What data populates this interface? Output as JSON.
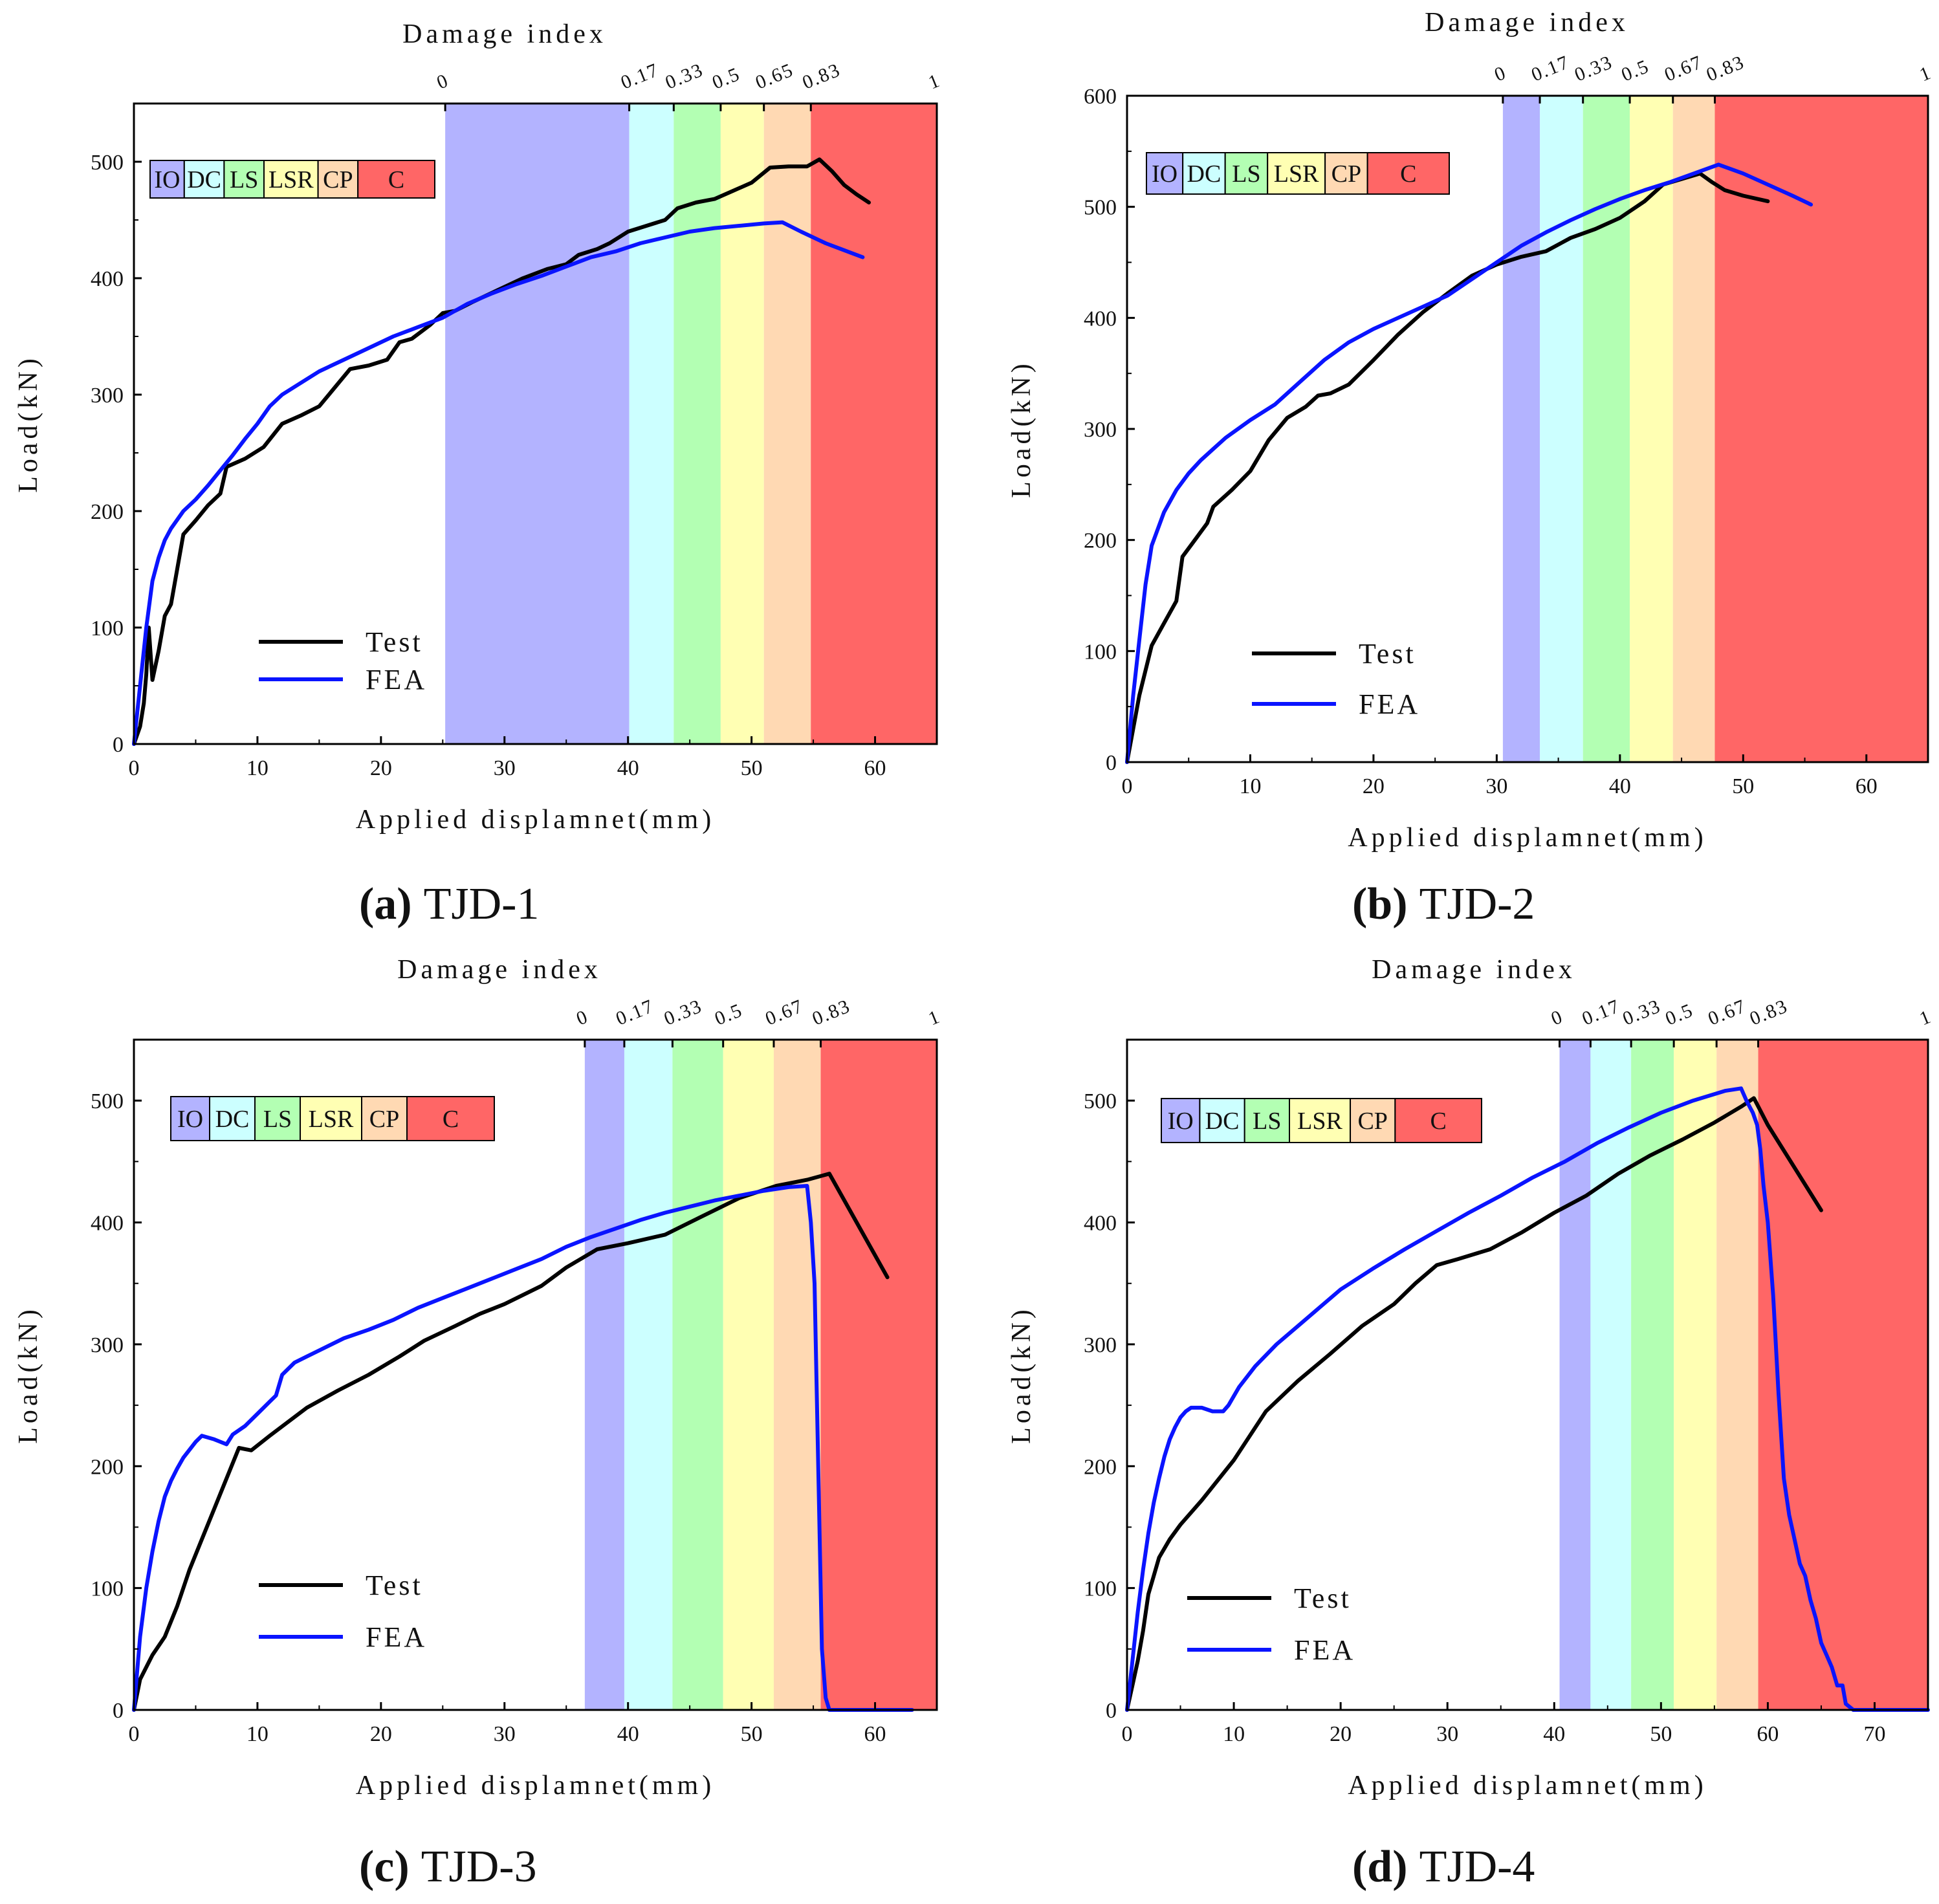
{
  "figure": {
    "colors": {
      "test": "#000000",
      "fea": "#0a14ff",
      "IO": "#b3b3ff",
      "DC": "#ccffff",
      "LS": "#b3ffb3",
      "LSR": "#ffffb3",
      "CP": "#ffd9b3",
      "C": "#ff6666"
    }
  },
  "chart_data": [
    {
      "type": "line",
      "panel": "a",
      "caption_letter": "(a)",
      "caption_name": "TJD-1",
      "title": "Damage index",
      "xlabel": "Applied displamnet(mm)",
      "ylabel": "Load(kN)",
      "xlim": [
        0,
        65
      ],
      "ylim": [
        0,
        550
      ],
      "xticks": [
        0,
        10,
        20,
        30,
        40,
        50,
        60
      ],
      "yticks": [
        0,
        100,
        200,
        300,
        400,
        500
      ],
      "damage_index": {
        "ticks": [
          "0",
          "0.17",
          "0.33",
          "0.5",
          "0.65",
          "0.83",
          "1"
        ],
        "boundaries": [
          25.2,
          40.1,
          43.7,
          47.5,
          51.0,
          54.8,
          65
        ]
      },
      "zone_labels": [
        "IO",
        "DC",
        "LS",
        "LSR",
        "CP",
        "C"
      ],
      "legend": [
        "Test",
        "FEA"
      ],
      "series": [
        {
          "name": "Test",
          "x": [
            0,
            0.5,
            0.8,
            1.0,
            1.2,
            1.5,
            2.0,
            2.5,
            3.0,
            4.0,
            5.0,
            6.0,
            7.0,
            7.5,
            9.0,
            10.5,
            12.0,
            13.5,
            15.0,
            17.5,
            19.0,
            20.5,
            21.5,
            22.5,
            24.0,
            25.0,
            26.0,
            27.5,
            29.5,
            31.5,
            33.5,
            35.0,
            36.0,
            37.5,
            38.5,
            40.0,
            41.5,
            43.0,
            44.0,
            45.5,
            47.0,
            48.5,
            50.0,
            51.5,
            53.0,
            54.5,
            55.5,
            56.5,
            57.5,
            58.5,
            59.5
          ],
          "values": [
            0,
            15,
            35,
            60,
            100,
            55,
            80,
            110,
            120,
            180,
            192,
            205,
            215,
            238,
            245,
            255,
            275,
            282,
            290,
            322,
            325,
            330,
            345,
            348,
            360,
            370,
            372,
            380,
            390,
            400,
            408,
            412,
            420,
            425,
            430,
            440,
            445,
            450,
            460,
            465,
            468,
            475,
            482,
            495,
            496,
            496,
            502,
            492,
            480,
            472,
            465
          ]
        },
        {
          "name": "FEA",
          "x": [
            0,
            0.5,
            1.0,
            1.5,
            2.0,
            2.5,
            3.0,
            4.0,
            5.0,
            6.0,
            7.0,
            8.0,
            9.0,
            10.0,
            11.0,
            12.0,
            13.5,
            15.0,
            17.0,
            19.0,
            21.0,
            23.0,
            25.0,
            27.0,
            29.0,
            31.0,
            33.0,
            35.0,
            37.0,
            39.0,
            41.0,
            43.0,
            45.0,
            47.0,
            49.0,
            51.0,
            52.5,
            54.0,
            56.0,
            58.0,
            59.0
          ],
          "values": [
            0,
            50,
            100,
            140,
            160,
            175,
            185,
            200,
            210,
            222,
            235,
            248,
            262,
            275,
            290,
            300,
            310,
            320,
            330,
            340,
            350,
            358,
            366,
            378,
            387,
            395,
            402,
            410,
            418,
            423,
            430,
            435,
            440,
            443,
            445,
            447,
            448,
            440,
            430,
            422,
            418
          ]
        }
      ]
    },
    {
      "type": "line",
      "panel": "b",
      "caption_letter": "(b)",
      "caption_name": "TJD-2",
      "title": "Damage index",
      "xlabel": "Applied displamnet(mm)",
      "ylabel": "Load(kN)",
      "xlim": [
        0,
        65
      ],
      "ylim": [
        0,
        600
      ],
      "xticks": [
        0,
        10,
        20,
        30,
        40,
        50,
        60
      ],
      "yticks": [
        0,
        100,
        200,
        300,
        400,
        500,
        600
      ],
      "damage_index": {
        "ticks": [
          "0",
          "0.17",
          "0.33",
          "0.5",
          "0.67",
          "0.83",
          "1"
        ],
        "boundaries": [
          30.5,
          33.5,
          37.0,
          40.8,
          44.3,
          47.7,
          65
        ]
      },
      "zone_labels": [
        "IO",
        "DC",
        "LS",
        "LSR",
        "CP",
        "C"
      ],
      "legend": [
        "Test",
        "FEA"
      ],
      "series": [
        {
          "name": "Test",
          "x": [
            0,
            1.0,
            2.0,
            3.0,
            4.0,
            4.5,
            5.5,
            6.5,
            7.0,
            8.5,
            10.0,
            11.5,
            13.0,
            14.5,
            15.5,
            16.5,
            18.0,
            20.0,
            22.0,
            24.0,
            26.0,
            28.0,
            30.0,
            32.0,
            34.0,
            36.0,
            38.0,
            40.0,
            42.0,
            43.5,
            45.0,
            46.5,
            47.5,
            48.5,
            50.0,
            52.0
          ],
          "values": [
            0,
            60,
            105,
            125,
            145,
            185,
            200,
            215,
            230,
            245,
            262,
            290,
            310,
            320,
            330,
            332,
            340,
            362,
            385,
            405,
            422,
            438,
            448,
            455,
            460,
            472,
            480,
            490,
            505,
            520,
            525,
            530,
            522,
            515,
            510,
            505
          ]
        },
        {
          "name": "FEA",
          "x": [
            0,
            0.5,
            1.0,
            1.5,
            2.0,
            3.0,
            4.0,
            5.0,
            6.0,
            7.0,
            8.0,
            10.0,
            12.0,
            14.0,
            16.0,
            18.0,
            20.0,
            22.0,
            24.0,
            26.0,
            28.0,
            30.0,
            32.0,
            34.0,
            36.0,
            38.0,
            40.0,
            42.0,
            44.0,
            46.0,
            48.0,
            50.0,
            52.0,
            54.0,
            55.5
          ],
          "values": [
            0,
            60,
            110,
            160,
            195,
            225,
            245,
            260,
            272,
            282,
            292,
            308,
            322,
            342,
            362,
            378,
            390,
            400,
            410,
            420,
            435,
            450,
            465,
            477,
            488,
            498,
            507,
            515,
            522,
            530,
            538,
            530,
            520,
            510,
            502
          ]
        }
      ]
    },
    {
      "type": "line",
      "panel": "c",
      "caption_letter": "(c)",
      "caption_name": "TJD-3",
      "title": "Damage index",
      "xlabel": "Applied displamnet(mm)",
      "ylabel": "Load(kN)",
      "xlim": [
        0,
        65
      ],
      "ylim": [
        0,
        550
      ],
      "xticks": [
        0,
        10,
        20,
        30,
        40,
        50,
        60
      ],
      "yticks": [
        0,
        100,
        200,
        300,
        400,
        500
      ],
      "damage_index": {
        "ticks": [
          "0",
          "0.17",
          "0.33",
          "0.5",
          "0.67",
          "0.83",
          "1"
        ],
        "boundaries": [
          36.5,
          39.7,
          43.6,
          47.7,
          51.8,
          55.6,
          65
        ]
      },
      "zone_labels": [
        "IO",
        "DC",
        "LS",
        "LSR",
        "CP",
        "C"
      ],
      "legend": [
        "Test",
        "FEA"
      ],
      "series": [
        {
          "name": "Test",
          "x": [
            0,
            0.5,
            1.5,
            2.5,
            3.5,
            4.5,
            5.5,
            6.5,
            7.5,
            8.5,
            9.5,
            11.0,
            14.0,
            16.5,
            19.0,
            21.5,
            23.5,
            26.0,
            28.0,
            30.0,
            33.0,
            35.0,
            37.5,
            40.0,
            43.0,
            46.0,
            49.0,
            52.0,
            54.5,
            56.3,
            61.0
          ],
          "values": [
            0,
            25,
            45,
            60,
            85,
            115,
            140,
            165,
            190,
            215,
            213,
            225,
            248,
            262,
            275,
            290,
            303,
            315,
            325,
            333,
            348,
            363,
            378,
            383,
            390,
            405,
            420,
            430,
            435,
            440,
            355
          ]
        },
        {
          "name": "FEA",
          "x": [
            0,
            0.5,
            1.0,
            1.5,
            2.0,
            2.5,
            3.0,
            3.5,
            4.0,
            5.0,
            5.5,
            6.5,
            7.0,
            7.5,
            8.0,
            9.0,
            10.0,
            11.0,
            11.5,
            12.0,
            13.0,
            14.0,
            15.0,
            17.0,
            19.0,
            21.0,
            23.0,
            25.0,
            27.0,
            29.0,
            31.0,
            33.0,
            35.0,
            37.0,
            39.0,
            41.0,
            43.0,
            45.0,
            47.0,
            49.0,
            51.0,
            53.0,
            54.5,
            54.8,
            55.1,
            55.4,
            55.7,
            56.0,
            56.3,
            58.0,
            61.0,
            63.0
          ],
          "values": [
            0,
            60,
            100,
            130,
            155,
            175,
            188,
            198,
            207,
            220,
            225,
            222,
            220,
            218,
            226,
            233,
            243,
            253,
            258,
            275,
            285,
            290,
            295,
            305,
            312,
            320,
            330,
            338,
            346,
            354,
            362,
            370,
            380,
            388,
            395,
            402,
            408,
            413,
            418,
            422,
            426,
            429,
            430,
            400,
            350,
            200,
            50,
            10,
            0,
            0,
            0,
            0
          ]
        }
      ]
    },
    {
      "type": "line",
      "panel": "d",
      "caption_letter": "(d)",
      "caption_name": "TJD-4",
      "title": "Damage index",
      "xlabel": "Applied displamnet(mm)",
      "ylabel": "Load(kN)",
      "xlim": [
        0,
        75
      ],
      "ylim": [
        0,
        550
      ],
      "xticks": [
        0,
        10,
        20,
        30,
        40,
        50,
        60,
        70
      ],
      "yticks": [
        0,
        100,
        200,
        300,
        400,
        500
      ],
      "damage_index": {
        "ticks": [
          "0",
          "0.17",
          "0.33",
          "0.5",
          "0.67",
          "0.83",
          "1"
        ],
        "boundaries": [
          40.5,
          43.4,
          47.2,
          51.2,
          55.2,
          59.1,
          75
        ]
      },
      "zone_labels": [
        "IO",
        "DC",
        "LS",
        "LSR",
        "CP",
        "C"
      ],
      "legend": [
        "Test",
        "FEA"
      ],
      "series": [
        {
          "name": "Test",
          "x": [
            0,
            0.5,
            1.0,
            1.5,
            2.0,
            2.5,
            3.0,
            4.0,
            5.0,
            7.0,
            10.0,
            13.0,
            16.0,
            19.0,
            22.0,
            25.0,
            27.0,
            29.0,
            31.0,
            34.0,
            37.0,
            40.0,
            43.0,
            46.0,
            49.0,
            52.0,
            55.0,
            57.5,
            58.7,
            60.0,
            62.5,
            65.0
          ],
          "values": [
            0,
            20,
            40,
            65,
            95,
            110,
            125,
            140,
            152,
            172,
            205,
            245,
            270,
            292,
            315,
            333,
            350,
            365,
            370,
            378,
            392,
            408,
            422,
            440,
            455,
            468,
            482,
            495,
            502,
            480,
            445,
            410
          ]
        },
        {
          "name": "FEA",
          "x": [
            0,
            0.5,
            1.0,
            1.5,
            2.0,
            2.5,
            3.0,
            3.5,
            4.0,
            4.5,
            5.0,
            5.5,
            6.0,
            7.0,
            8.0,
            9.0,
            9.5,
            10.5,
            12.0,
            14.0,
            16.0,
            18.0,
            20.0,
            23.0,
            26.0,
            29.0,
            32.0,
            35.0,
            38.0,
            41.0,
            44.0,
            47.0,
            50.0,
            53.0,
            56.0,
            57.5,
            58.0,
            58.3,
            58.6,
            59.0,
            59.3,
            59.6,
            60.0,
            60.5,
            61.0,
            61.5,
            62.0,
            62.5,
            63.0,
            63.5,
            64.0,
            64.5,
            65.0,
            65.5,
            66.0,
            66.5,
            67.0,
            67.3,
            68.0,
            72.0,
            75.0
          ],
          "values": [
            0,
            40,
            80,
            115,
            145,
            170,
            190,
            208,
            222,
            232,
            240,
            245,
            248,
            248,
            245,
            245,
            250,
            265,
            282,
            300,
            315,
            330,
            345,
            362,
            378,
            393,
            408,
            422,
            437,
            450,
            465,
            478,
            490,
            500,
            508,
            510,
            500,
            495,
            490,
            480,
            460,
            430,
            400,
            340,
            260,
            190,
            160,
            140,
            120,
            110,
            90,
            75,
            55,
            45,
            35,
            20,
            20,
            5,
            0,
            0,
            0
          ]
        }
      ]
    }
  ]
}
